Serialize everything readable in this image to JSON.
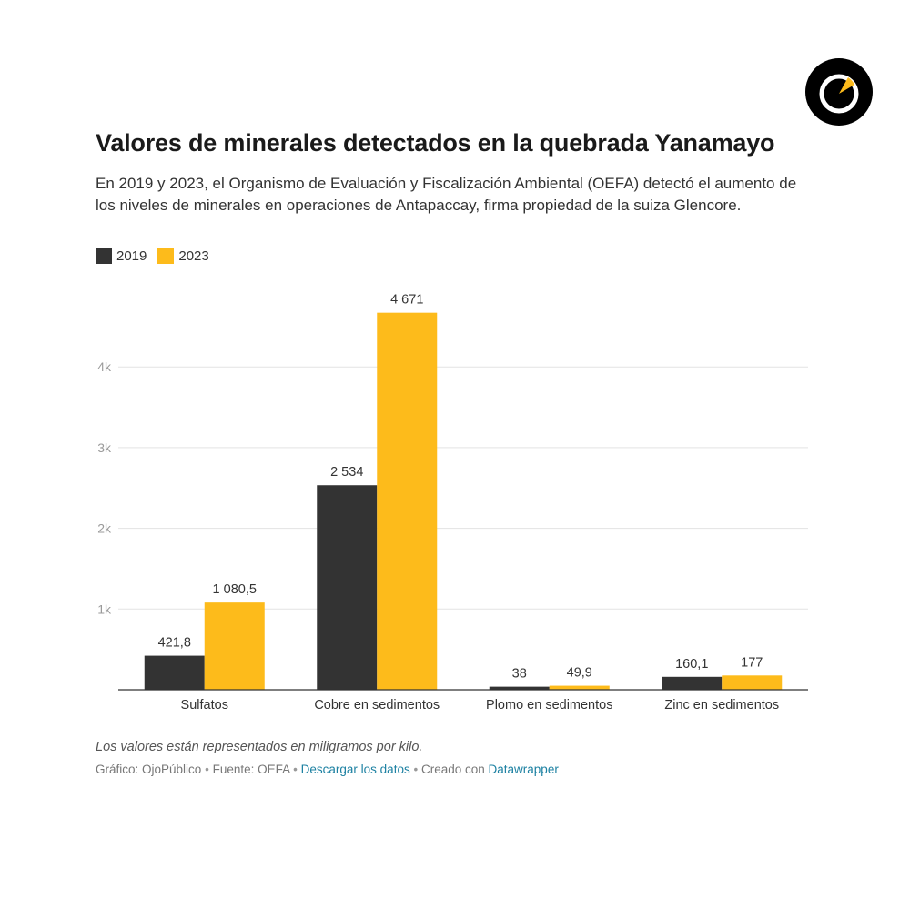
{
  "title": "Valores de minerales detectados en la quebrada Yanamayo",
  "subtitle": "En 2019 y 2023, el Organismo de Evaluación y Fiscalización Ambiental (OEFA) detectó el aumento de los niveles de minerales en operaciones de Antapaccay, firma propiedad de la suiza Glencore.",
  "legend": [
    {
      "label": "2019",
      "color": "#333333"
    },
    {
      "label": "2023",
      "color": "#fdbb1b"
    }
  ],
  "chart_data": {
    "type": "bar",
    "title": "Valores de minerales detectados en la quebrada Yanamayo",
    "categories": [
      "Sulfatos",
      "Cobre en sedimentos",
      "Plomo en sedimentos",
      "Zinc en sedimentos"
    ],
    "series": [
      {
        "name": "2019",
        "color": "#333333",
        "values": [
          421.8,
          2534,
          38,
          160.1
        ],
        "labels": [
          "421,8",
          "2 534",
          "38",
          "160,1"
        ]
      },
      {
        "name": "2023",
        "color": "#fdbb1b",
        "values": [
          1080.5,
          4671,
          49.9,
          177
        ],
        "labels": [
          "1 080,5",
          "4 671",
          "49,9",
          "177"
        ]
      }
    ],
    "y_ticks": [
      {
        "value": 1000,
        "label": "1k"
      },
      {
        "value": 2000,
        "label": "2k"
      },
      {
        "value": 3000,
        "label": "3k"
      },
      {
        "value": 4000,
        "label": "4k"
      }
    ],
    "ylim": [
      0,
      5000
    ],
    "xlabel": "",
    "ylabel": "",
    "grid": true
  },
  "note": "Los valores están representados en miligramos por kilo.",
  "footer": {
    "credit": "Gráfico: OjoPúblico",
    "source": "Fuente: OEFA",
    "download": "Descargar los datos",
    "created": "Creado con",
    "tool": "Datawrapper",
    "separator": "•"
  }
}
